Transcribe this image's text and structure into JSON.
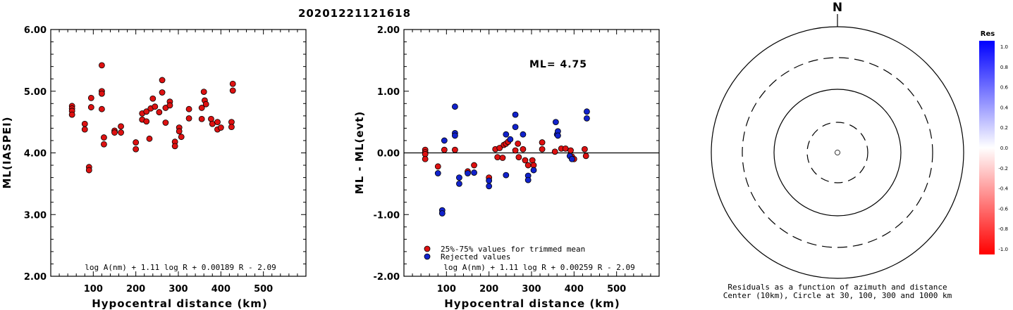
{
  "title": "20201221121618",
  "chart_data": [
    {
      "type": "scatter",
      "xlabel": "Hypocentral distance (km)",
      "ylabel": "ML(IASPEI)",
      "xlim": [
        0,
        600
      ],
      "ylim": [
        2.0,
        6.0
      ],
      "xticks": [
        "100",
        "200",
        "300",
        "400",
        "500"
      ],
      "yticks": [
        "2.00",
        "3.00",
        "4.00",
        "5.00",
        "6.00"
      ],
      "formula": "log A(nm) + 1.11 log R + 0.00189 R - 2.09",
      "series": [
        {
          "color": "#dd1111",
          "points": [
            [
              50,
              4.76
            ],
            [
              50,
              4.72
            ],
            [
              50,
              4.68
            ],
            [
              50,
              4.62
            ],
            [
              80,
              4.47
            ],
            [
              80,
              4.38
            ],
            [
              90,
              3.77
            ],
            [
              90,
              3.72
            ],
            [
              95,
              4.89
            ],
            [
              95,
              4.74
            ],
            [
              120,
              5.42
            ],
            [
              120,
              5.0
            ],
            [
              120,
              4.96
            ],
            [
              120,
              4.71
            ],
            [
              125,
              4.25
            ],
            [
              125,
              4.14
            ],
            [
              150,
              4.36
            ],
            [
              150,
              4.33
            ],
            [
              165,
              4.43
            ],
            [
              165,
              4.33
            ],
            [
              200,
              4.17
            ],
            [
              200,
              4.06
            ],
            [
              215,
              4.64
            ],
            [
              215,
              4.54
            ],
            [
              225,
              4.67
            ],
            [
              225,
              4.51
            ],
            [
              232,
              4.23
            ],
            [
              235,
              4.72
            ],
            [
              240,
              4.88
            ],
            [
              245,
              4.75
            ],
            [
              255,
              4.66
            ],
            [
              262,
              5.18
            ],
            [
              262,
              4.98
            ],
            [
              270,
              4.73
            ],
            [
              270,
              4.49
            ],
            [
              280,
              4.83
            ],
            [
              280,
              4.77
            ],
            [
              292,
              4.18
            ],
            [
              292,
              4.11
            ],
            [
              302,
              4.41
            ],
            [
              302,
              4.35
            ],
            [
              307,
              4.26
            ],
            [
              325,
              4.71
            ],
            [
              325,
              4.56
            ],
            [
              355,
              4.73
            ],
            [
              355,
              4.55
            ],
            [
              360,
              4.99
            ],
            [
              362,
              4.85
            ],
            [
              365,
              4.79
            ],
            [
              377,
              4.55
            ],
            [
              380,
              4.47
            ],
            [
              392,
              4.5
            ],
            [
              392,
              4.38
            ],
            [
              400,
              4.41
            ],
            [
              425,
              4.5
            ],
            [
              425,
              4.42
            ],
            [
              428,
              5.12
            ],
            [
              428,
              5.01
            ]
          ]
        }
      ]
    },
    {
      "type": "scatter",
      "xlabel": "Hypocentral distance (km)",
      "ylabel": "ML - ML(evt)",
      "xlim": [
        0,
        600
      ],
      "ylim": [
        -2.0,
        2.0
      ],
      "xticks": [
        "100",
        "200",
        "300",
        "400",
        "500"
      ],
      "yticks": [
        "-2.00",
        "-1.00",
        "0.00",
        "1.00",
        "2.00"
      ],
      "ml_label": "ML= 4.75",
      "legend": [
        "25%-75% values for trimmed mean",
        "Rejected values"
      ],
      "formula": "log A(nm) + 1.11 log R + 0.00259 R - 2.09",
      "series": [
        {
          "name": "25%-75% values for trimmed mean",
          "color": "#dd1111",
          "points": [
            [
              50,
              0.05
            ],
            [
              50,
              0.01
            ],
            [
              50,
              -0.02
            ],
            [
              50,
              -0.1
            ],
            [
              80,
              -0.22
            ],
            [
              95,
              0.05
            ],
            [
              120,
              0.05
            ],
            [
              150,
              -0.3
            ],
            [
              165,
              -0.2
            ],
            [
              200,
              -0.4
            ],
            [
              215,
              0.06
            ],
            [
              220,
              -0.07
            ],
            [
              225,
              0.08
            ],
            [
              232,
              -0.08
            ],
            [
              235,
              0.13
            ],
            [
              240,
              0.15
            ],
            [
              245,
              0.18
            ],
            [
              262,
              0.04
            ],
            [
              268,
              0.15
            ],
            [
              270,
              -0.07
            ],
            [
              280,
              0.06
            ],
            [
              285,
              -0.12
            ],
            [
              292,
              -0.2
            ],
            [
              302,
              -0.12
            ],
            [
              305,
              -0.2
            ],
            [
              325,
              0.17
            ],
            [
              325,
              0.06
            ],
            [
              355,
              0.02
            ],
            [
              370,
              0.07
            ],
            [
              380,
              0.07
            ],
            [
              392,
              0.04
            ],
            [
              395,
              -0.06
            ],
            [
              400,
              -0.1
            ],
            [
              425,
              0.06
            ],
            [
              428,
              -0.05
            ]
          ]
        },
        {
          "name": "Rejected values",
          "color": "#1122cc",
          "points": [
            [
              80,
              -0.33
            ],
            [
              90,
              -0.93
            ],
            [
              90,
              -0.98
            ],
            [
              95,
              0.2
            ],
            [
              120,
              0.75
            ],
            [
              120,
              0.32
            ],
            [
              120,
              0.28
            ],
            [
              130,
              -0.4
            ],
            [
              130,
              -0.5
            ],
            [
              150,
              -0.33
            ],
            [
              165,
              -0.32
            ],
            [
              200,
              -0.45
            ],
            [
              200,
              -0.54
            ],
            [
              240,
              0.3
            ],
            [
              240,
              -0.36
            ],
            [
              250,
              0.22
            ],
            [
              262,
              0.62
            ],
            [
              262,
              0.42
            ],
            [
              280,
              0.3
            ],
            [
              292,
              -0.37
            ],
            [
              292,
              -0.44
            ],
            [
              305,
              -0.28
            ],
            [
              357,
              0.5
            ],
            [
              360,
              0.3
            ],
            [
              362,
              0.35
            ],
            [
              362,
              0.28
            ],
            [
              390,
              -0.05
            ],
            [
              395,
              -0.1
            ],
            [
              430,
              0.67
            ],
            [
              430,
              0.56
            ]
          ]
        }
      ]
    },
    {
      "type": "polar",
      "north_label": "N",
      "caption_line1": "Residuals as a function of azimuth and distance",
      "caption_line2": "Center (10km), Circle at 30, 100, 300 and 1000 km",
      "colorbar_title": "Res",
      "colorbar_ticks": [
        "1.0",
        "0.8",
        "0.6",
        "0.4",
        "0.2",
        "0.0",
        "-0.2",
        "-0.4",
        "-0.6",
        "-0.8",
        "-1.0"
      ],
      "colorbar_range": [
        -1.0,
        1.0
      ],
      "stations": [
        {
          "azimuth": 0,
          "distance_km": 0,
          "residual": 0
        }
      ]
    }
  ]
}
